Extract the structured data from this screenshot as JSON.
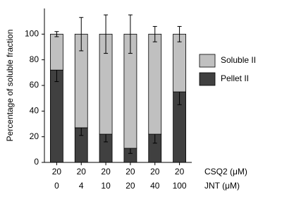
{
  "chart_data": {
    "type": "stacked-bar",
    "ylabel": "Percentage of soluble fraction",
    "categories": [
      [
        "20",
        "0"
      ],
      [
        "20",
        "4"
      ],
      [
        "20",
        "10"
      ],
      [
        "20",
        "20"
      ],
      [
        "20",
        "40"
      ],
      [
        "20",
        "100"
      ]
    ],
    "category_labels": [
      "CSQ2 (μM)",
      "JNT (μM)"
    ],
    "series": [
      {
        "name": "Pellet II",
        "color": "#404040",
        "values": [
          72,
          27,
          22,
          11,
          22,
          55
        ],
        "errors": [
          9,
          6,
          6,
          4,
          7,
          10
        ]
      },
      {
        "name": "Soluble II",
        "color": "#c0c0c0",
        "values": [
          28,
          73,
          78,
          89,
          78,
          45
        ],
        "errors": [
          2,
          13,
          15,
          15,
          6,
          6
        ]
      }
    ],
    "ylim": [
      0,
      120
    ],
    "yticks": [
      0,
      20,
      40,
      60,
      80,
      100
    ]
  }
}
